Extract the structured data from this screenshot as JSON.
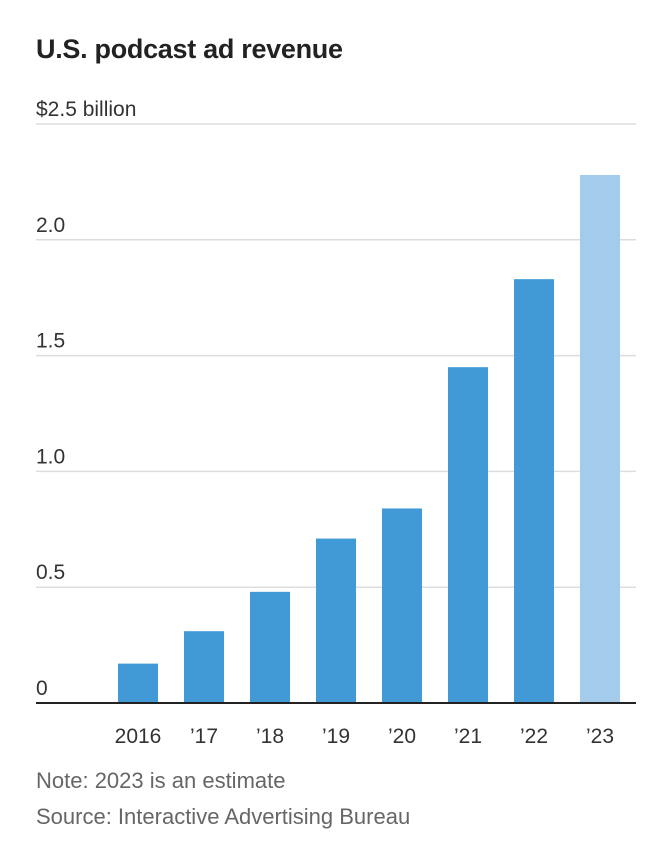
{
  "chart_data": {
    "type": "bar",
    "title": "U.S. podcast ad revenue",
    "xlabel": "",
    "ylabel": "",
    "categories": [
      "2016",
      "’17",
      "’18",
      "’19",
      "’20",
      "’21",
      "’22",
      "’23"
    ],
    "values": [
      0.17,
      0.31,
      0.48,
      0.71,
      0.84,
      1.45,
      1.83,
      2.28
    ],
    "estimated": [
      false,
      false,
      false,
      false,
      false,
      false,
      false,
      true
    ],
    "ylim": [
      0,
      2.5
    ],
    "y_ticks": [
      {
        "value": 0,
        "label": "0"
      },
      {
        "value": 0.5,
        "label": "0.5"
      },
      {
        "value": 1.0,
        "label": "1.0"
      },
      {
        "value": 1.5,
        "label": "1.5"
      },
      {
        "value": 2.0,
        "label": "2.0"
      },
      {
        "value": 2.5,
        "label": "$2.5 billion"
      }
    ],
    "grid": true,
    "colors": {
      "bar": "#4199d6",
      "estimate_bar": "#a3cbec",
      "grid": "#dddddd",
      "axis": "#222222"
    }
  },
  "notes": {
    "note": "Note: 2023 is an estimate",
    "source": "Source: Interactive Advertising Bureau"
  }
}
